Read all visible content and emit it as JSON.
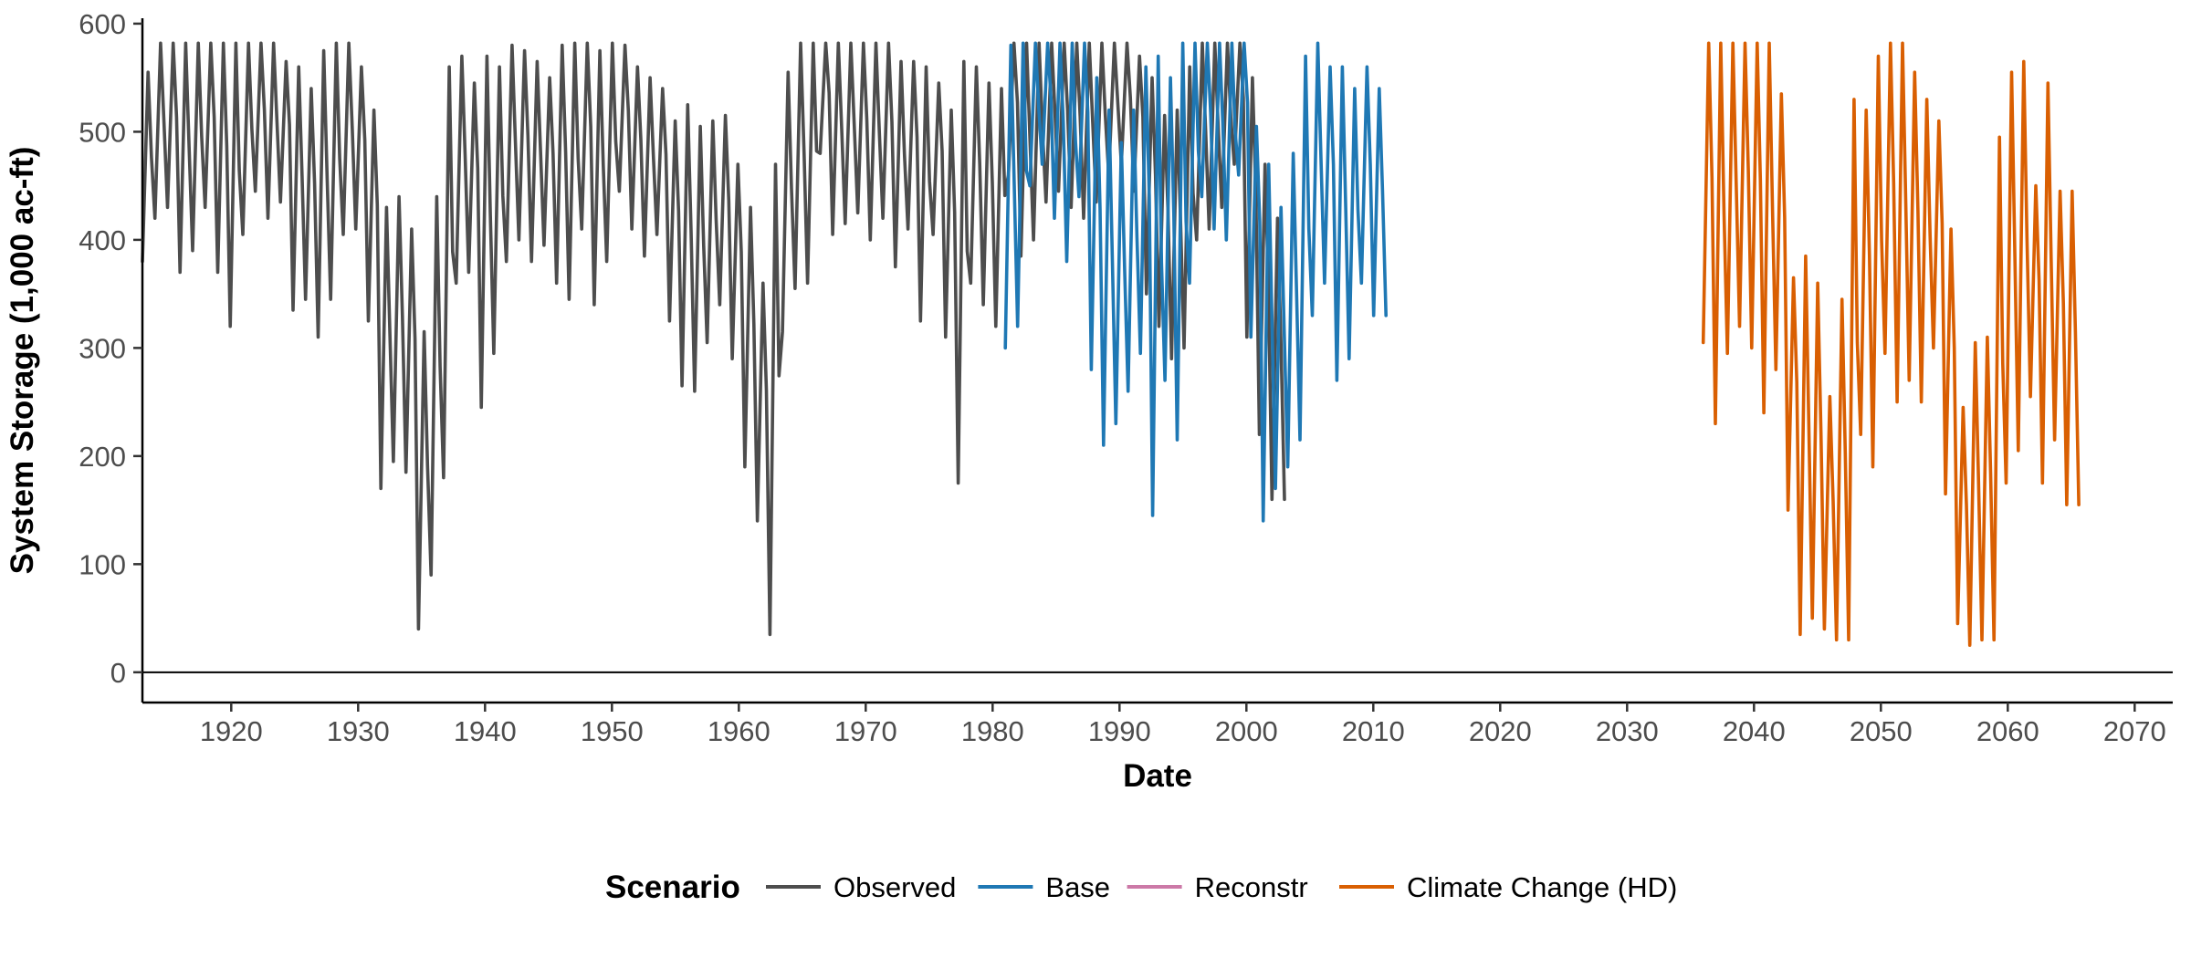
{
  "chart_data": {
    "type": "line",
    "title": "",
    "xlabel": "Date",
    "ylabel": "System Storage (1,000 ac-ft)",
    "xlim": [
      1913,
      2073
    ],
    "ylim": [
      -28,
      605
    ],
    "x_ticks": [
      1920,
      1930,
      1940,
      1950,
      1960,
      1970,
      1980,
      1990,
      2000,
      2010,
      2020,
      2030,
      2040,
      2050,
      2060,
      2070
    ],
    "y_ticks": [
      0,
      100,
      200,
      300,
      400,
      500,
      600
    ],
    "reference_line_y": 0,
    "grid": false,
    "legend": {
      "title": "Scenario",
      "position": "bottom",
      "entries": [
        {
          "label": "Observed",
          "color": "#4d4d4d"
        },
        {
          "label": "Base",
          "color": "#1f78b4"
        },
        {
          "label": "Reconstr",
          "color": "#cc79a7"
        },
        {
          "label": "Climate Change (HD)",
          "color": "#d95f02"
        }
      ]
    },
    "series": [
      {
        "name": "Observed",
        "color": "#4d4d4d",
        "x_start": 1913,
        "x_end": 2003,
        "annual_low": [
          380,
          420,
          430,
          370,
          390,
          430,
          370,
          320,
          405,
          445,
          420,
          435,
          335,
          345,
          310,
          345,
          405,
          410,
          325,
          170,
          195,
          185,
          40,
          90,
          180,
          360,
          370,
          245,
          295,
          380,
          400,
          380,
          395,
          360,
          345,
          410,
          340,
          380,
          445,
          410,
          385,
          405,
          325,
          265,
          260,
          305,
          340,
          290,
          190,
          140,
          35,
          315,
          355,
          360,
          480,
          405,
          415,
          425,
          400,
          420,
          375,
          410,
          325,
          405,
          310,
          175,
          360,
          340,
          320,
          460,
          385,
          400,
          435,
          445,
          430,
          420,
          435,
          460,
          470,
          445,
          350,
          320,
          290,
          300,
          400,
          410,
          430,
          470,
          310,
          220,
          160
        ],
        "annual_high": [
          555,
          582,
          582,
          582,
          582,
          582,
          582,
          582,
          582,
          582,
          582,
          565,
          560,
          540,
          575,
          582,
          582,
          560,
          520,
          430,
          440,
          410,
          315,
          440,
          560,
          570,
          545,
          570,
          560,
          580,
          575,
          565,
          550,
          580,
          582,
          582,
          575,
          582,
          580,
          560,
          550,
          540,
          510,
          525,
          505,
          510,
          515,
          470,
          430,
          360,
          470,
          555,
          582,
          582,
          582,
          582,
          582,
          582,
          582,
          582,
          565,
          565,
          560,
          545,
          520,
          565,
          560,
          545,
          540,
          582,
          582,
          582,
          582,
          582,
          582,
          582,
          582,
          582,
          582,
          570,
          550,
          515,
          520,
          560,
          582,
          582,
          582,
          582,
          550,
          470,
          420
        ]
      },
      {
        "name": "Base",
        "color": "#1f78b4",
        "x_start": 1981,
        "x_end": 2011,
        "annual_low": [
          300,
          320,
          450,
          470,
          420,
          380,
          440,
          280,
          210,
          230,
          260,
          295,
          145,
          270,
          215,
          360,
          440,
          410,
          400,
          460,
          310,
          140,
          170,
          190,
          215,
          330,
          360,
          270,
          290,
          360,
          330
        ],
        "annual_high": [
          580,
          582,
          582,
          582,
          582,
          582,
          582,
          550,
          520,
          490,
          520,
          560,
          570,
          550,
          582,
          582,
          582,
          582,
          582,
          582,
          505,
          470,
          430,
          480,
          570,
          582,
          560,
          560,
          540,
          560,
          540
        ]
      },
      {
        "name": "Reconstr",
        "color": "#cc79a7",
        "x_start": null,
        "x_end": null,
        "annual_low": [],
        "annual_high": []
      },
      {
        "name": "Climate Change (HD)",
        "color": "#d95f02",
        "x_start": 2036,
        "x_end": 2065.6,
        "annual_low": [
          305,
          230,
          295,
          320,
          300,
          240,
          280,
          150,
          35,
          50,
          40,
          30,
          30,
          220,
          190,
          295,
          250,
          270,
          250,
          300,
          165,
          45,
          25,
          30,
          30,
          175,
          205,
          255,
          175,
          215,
          155
        ],
        "annual_high": [
          582,
          582,
          582,
          582,
          582,
          582,
          535,
          365,
          385,
          360,
          255,
          345,
          530,
          520,
          570,
          582,
          582,
          555,
          530,
          510,
          410,
          245,
          305,
          310,
          495,
          555,
          565,
          450,
          545,
          445,
          445
        ]
      }
    ]
  }
}
